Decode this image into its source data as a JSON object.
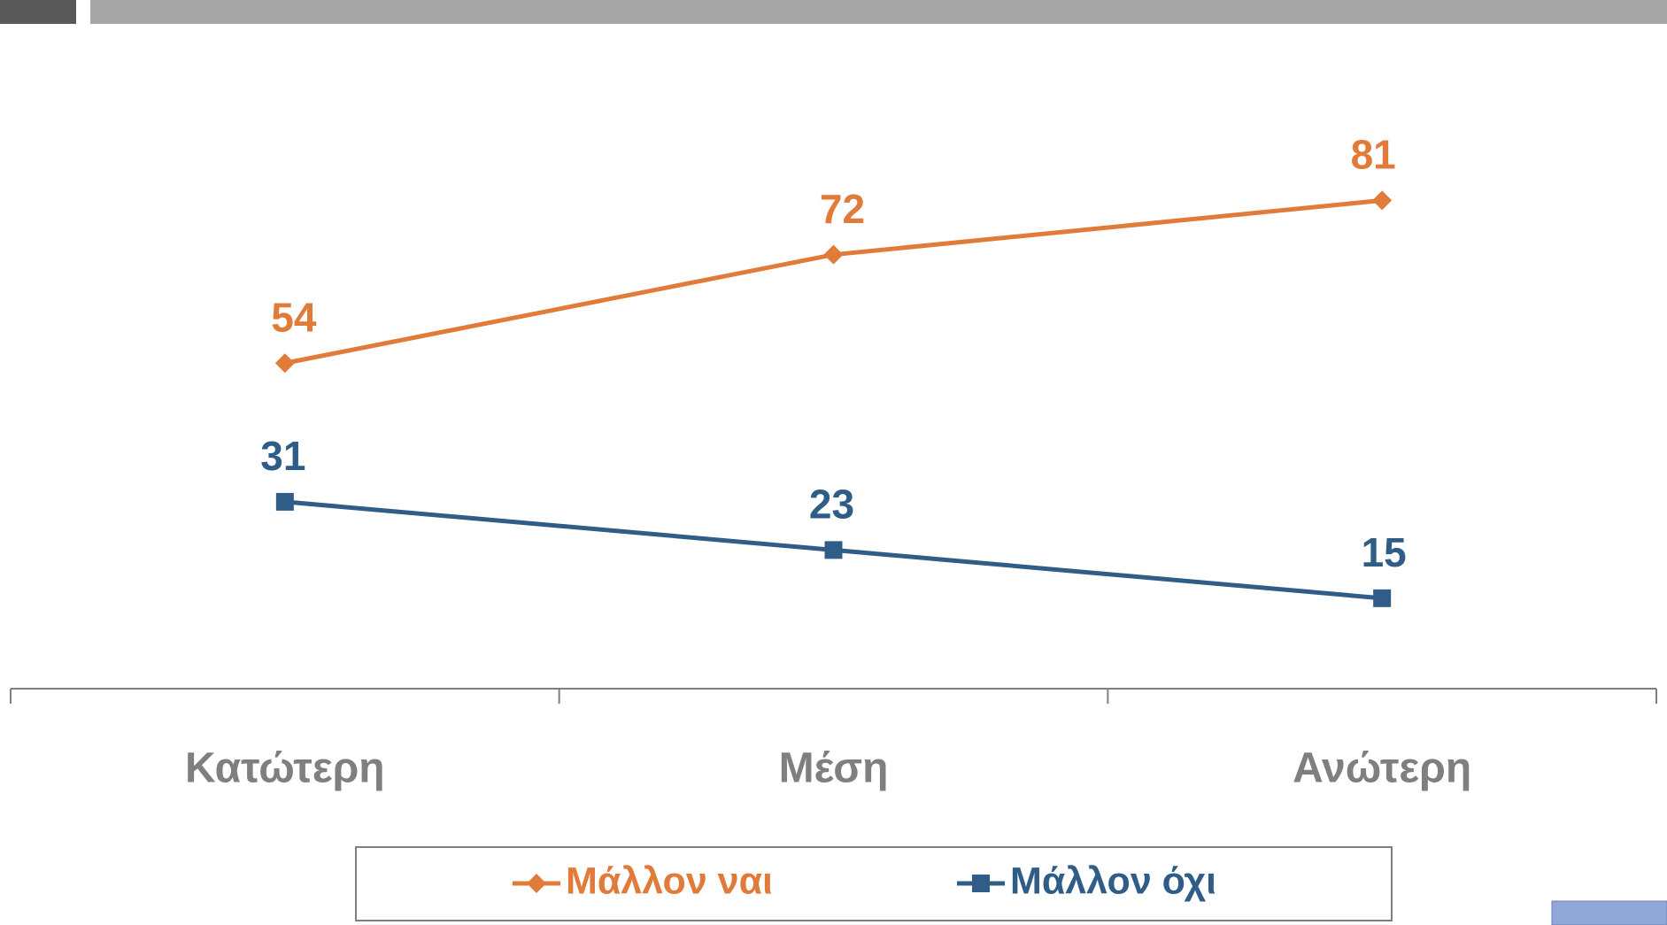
{
  "chart_data": {
    "type": "line",
    "categories": [
      "Κατώτερη",
      "Μέση",
      "Ανώτερη"
    ],
    "series": [
      {
        "name": "Μάλλον ναι",
        "color": "#e07b39",
        "marker": "diamond",
        "values": [
          54,
          72,
          81
        ]
      },
      {
        "name": "Μάλλον όχι",
        "color": "#2f5d87",
        "marker": "square",
        "values": [
          31,
          23,
          15
        ]
      }
    ],
    "ylim": [
      0,
      100
    ],
    "grid": false,
    "legend": "bottom"
  }
}
